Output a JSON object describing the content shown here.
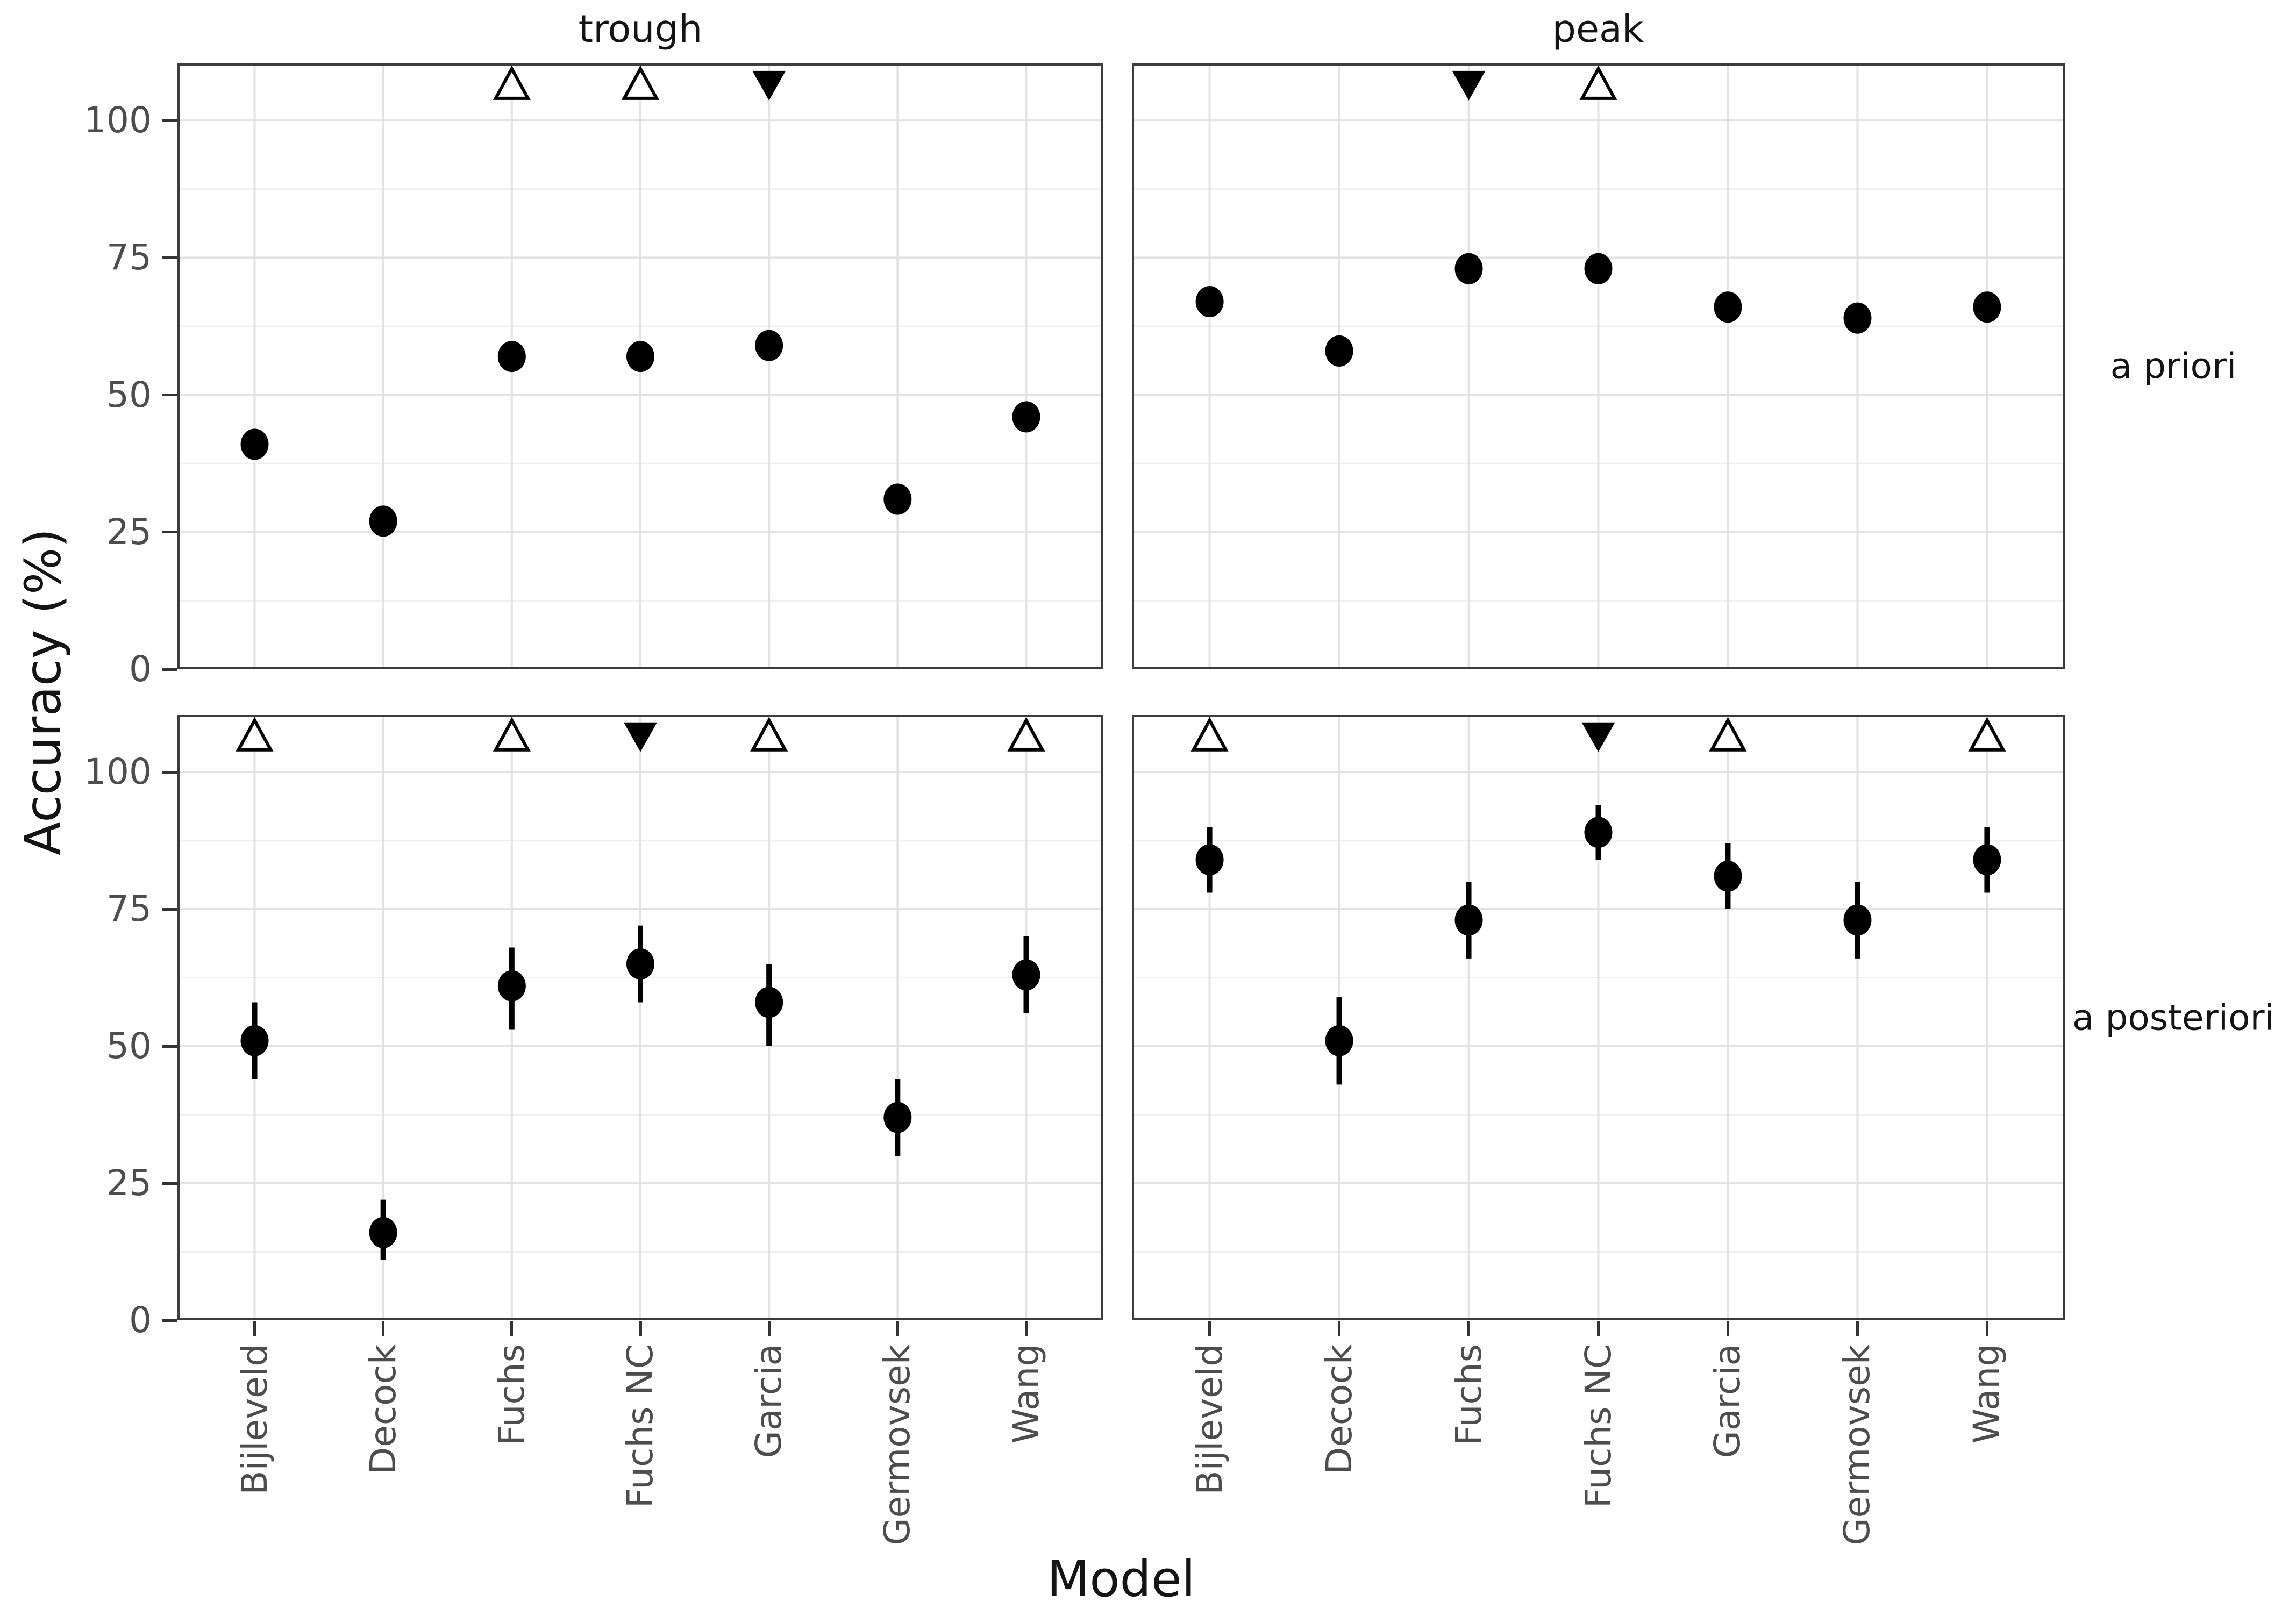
{
  "figure": {
    "y_axis_title": "Accuracy (%)",
    "x_axis_title": "Model"
  },
  "facets": {
    "cols": [
      "trough",
      "peak"
    ],
    "rows": [
      "a priori",
      "a posteriori"
    ]
  },
  "models": [
    "Bijleveld",
    "Decock",
    "Fuchs",
    "Fuchs NC",
    "Garcia",
    "Germovsek",
    "Wang"
  ],
  "colors": {
    "point": "#000000",
    "error_bar": "#000000",
    "grid_major": "#e3e3e3",
    "grid_minor": "#efefef",
    "panel_border": "#3d3d3d",
    "tick_mark": "#333333",
    "tick_text": "#4d4d4d",
    "title_text": "#141414",
    "marker_open_fill": "#ffffff",
    "marker_outline": "#000000"
  },
  "chart_data": {
    "type": "scatter",
    "subtype": "pointrange-facet-grid",
    "title": "",
    "xlabel": "Model",
    "ylabel": "Accuracy (%)",
    "categories": [
      "Bijleveld",
      "Decock",
      "Fuchs",
      "Fuchs NC",
      "Garcia",
      "Germovsek",
      "Wang"
    ],
    "ylim": [
      0,
      110.4
    ],
    "y_ticks": [
      0,
      25,
      50,
      75,
      100
    ],
    "y_minor": [
      12.5,
      37.5,
      62.5,
      87.5
    ],
    "grid": "major+minor horizontal, major vertical at each category",
    "legend": "none",
    "marker_y": 106.5,
    "marker_meaning": {
      "open-up": "open upward triangle at panel top",
      "filled-down": "filled downward triangle at panel top"
    },
    "panels": [
      {
        "col": "trough",
        "row": "a priori",
        "points": [
          {
            "model": "Bijleveld",
            "y": 41,
            "lo": 40,
            "hi": 43,
            "marker": null
          },
          {
            "model": "Decock",
            "y": 27,
            "lo": 26,
            "hi": 29,
            "marker": null
          },
          {
            "model": "Fuchs",
            "y": 57,
            "lo": 55,
            "hi": 59,
            "marker": "open-up"
          },
          {
            "model": "Fuchs NC",
            "y": 57,
            "lo": 55,
            "hi": 59,
            "marker": "open-up"
          },
          {
            "model": "Garcia",
            "y": 59,
            "lo": 57,
            "hi": 61,
            "marker": "filled-down"
          },
          {
            "model": "Germovsek",
            "y": 31,
            "lo": 30,
            "hi": 33,
            "marker": null
          },
          {
            "model": "Wang",
            "y": 46,
            "lo": 44,
            "hi": 48,
            "marker": null
          }
        ]
      },
      {
        "col": "peak",
        "row": "a priori",
        "points": [
          {
            "model": "Bijleveld",
            "y": 67,
            "lo": 65,
            "hi": 69,
            "marker": null
          },
          {
            "model": "Decock",
            "y": 58,
            "lo": 56,
            "hi": 60,
            "marker": null
          },
          {
            "model": "Fuchs",
            "y": 73,
            "lo": 71,
            "hi": 75,
            "marker": "filled-down"
          },
          {
            "model": "Fuchs NC",
            "y": 73,
            "lo": 71,
            "hi": 75,
            "marker": "open-up"
          },
          {
            "model": "Garcia",
            "y": 66,
            "lo": 64,
            "hi": 68,
            "marker": null
          },
          {
            "model": "Germovsek",
            "y": 64,
            "lo": 62,
            "hi": 66,
            "marker": null
          },
          {
            "model": "Wang",
            "y": 66,
            "lo": 64,
            "hi": 68,
            "marker": null
          }
        ]
      },
      {
        "col": "trough",
        "row": "a posteriori",
        "points": [
          {
            "model": "Bijleveld",
            "y": 51,
            "lo": 44,
            "hi": 58,
            "marker": "open-up"
          },
          {
            "model": "Decock",
            "y": 16,
            "lo": 11,
            "hi": 22,
            "marker": null
          },
          {
            "model": "Fuchs",
            "y": 61,
            "lo": 53,
            "hi": 68,
            "marker": "open-up"
          },
          {
            "model": "Fuchs NC",
            "y": 65,
            "lo": 58,
            "hi": 72,
            "marker": "filled-down"
          },
          {
            "model": "Garcia",
            "y": 58,
            "lo": 50,
            "hi": 65,
            "marker": "open-up"
          },
          {
            "model": "Germovsek",
            "y": 37,
            "lo": 30,
            "hi": 44,
            "marker": null
          },
          {
            "model": "Wang",
            "y": 63,
            "lo": 56,
            "hi": 70,
            "marker": "open-up"
          }
        ]
      },
      {
        "col": "peak",
        "row": "a posteriori",
        "points": [
          {
            "model": "Bijleveld",
            "y": 84,
            "lo": 78,
            "hi": 90,
            "marker": "open-up"
          },
          {
            "model": "Decock",
            "y": 51,
            "lo": 43,
            "hi": 59,
            "marker": null
          },
          {
            "model": "Fuchs",
            "y": 73,
            "lo": 66,
            "hi": 80,
            "marker": null
          },
          {
            "model": "Fuchs NC",
            "y": 89,
            "lo": 84,
            "hi": 94,
            "marker": "filled-down"
          },
          {
            "model": "Garcia",
            "y": 81,
            "lo": 75,
            "hi": 87,
            "marker": "open-up"
          },
          {
            "model": "Germovsek",
            "y": 73,
            "lo": 66,
            "hi": 80,
            "marker": null
          },
          {
            "model": "Wang",
            "y": 84,
            "lo": 78,
            "hi": 90,
            "marker": "open-up"
          }
        ]
      }
    ]
  }
}
